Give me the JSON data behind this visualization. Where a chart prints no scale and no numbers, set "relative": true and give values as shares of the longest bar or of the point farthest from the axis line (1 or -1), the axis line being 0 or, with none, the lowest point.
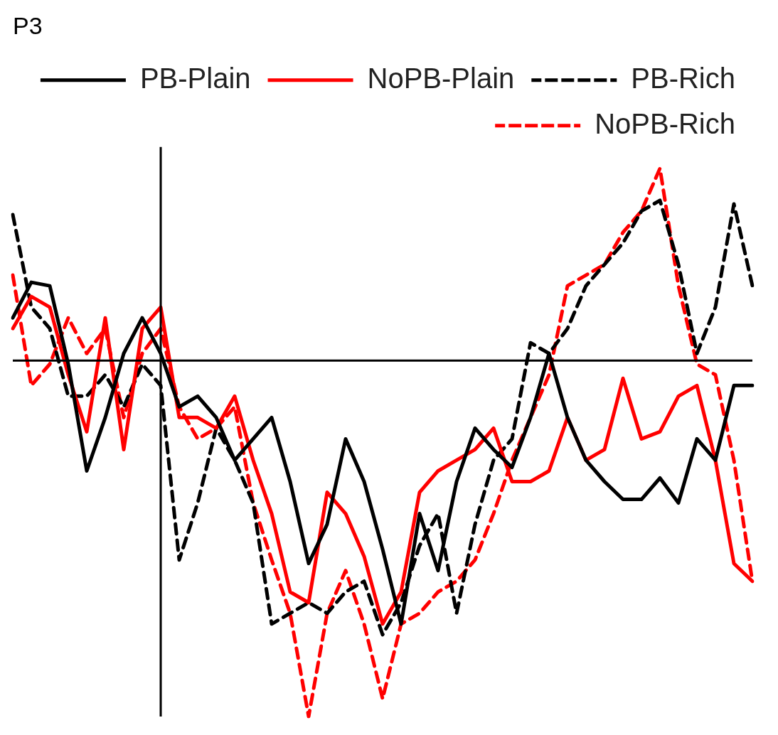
{
  "chart_data": {
    "type": "line",
    "title": "P3",
    "relative": true,
    "legend": "top",
    "marker": "none",
    "categories": [
      null,
      null,
      null,
      null,
      null,
      null,
      null,
      null,
      null,
      null,
      null,
      null,
      null,
      null,
      null,
      null,
      null,
      null,
      null,
      null,
      null,
      null,
      null,
      null,
      null,
      null,
      null,
      null,
      null,
      null,
      null,
      null,
      null,
      null,
      null,
      null,
      null,
      null,
      null,
      null,
      null
    ],
    "series": [
      {
        "name": "PB-Plain",
        "color": "#000000",
        "line_style": "solid",
        "values": [
          0.12,
          0.22,
          0.21,
          -0.01,
          -0.31,
          -0.16,
          0.02,
          0.12,
          0.02,
          -0.13,
          -0.1,
          -0.16,
          -0.28,
          -0.22,
          -0.16,
          -0.34,
          -0.57,
          -0.46,
          -0.22,
          -0.34,
          -0.53,
          -0.74,
          -0.43,
          -0.59,
          -0.34,
          -0.19,
          -0.25,
          -0.3,
          -0.16,
          0.02,
          -0.16,
          -0.28,
          -0.34,
          -0.39,
          -0.39,
          -0.33,
          -0.4,
          -0.22,
          -0.28,
          -0.07,
          -0.07
        ]
      },
      {
        "name": "NoPB-Plain",
        "color": "#ff0000",
        "line_style": "solid",
        "values": [
          0.09,
          0.18,
          0.15,
          -0.04,
          -0.2,
          0.12,
          -0.25,
          0.09,
          0.15,
          -0.16,
          -0.16,
          -0.19,
          -0.1,
          -0.28,
          -0.43,
          -0.65,
          -0.68,
          -0.37,
          -0.43,
          -0.55,
          -0.74,
          -0.65,
          -0.37,
          -0.31,
          -0.28,
          -0.25,
          -0.19,
          -0.34,
          -0.34,
          -0.31,
          -0.16,
          -0.28,
          -0.25,
          -0.05,
          -0.22,
          -0.2,
          -0.1,
          -0.07,
          -0.28,
          -0.57,
          -0.62
        ]
      },
      {
        "name": "PB-Rich",
        "color": "#000000",
        "line_style": "dashed",
        "values": [
          0.41,
          0.15,
          0.09,
          -0.1,
          -0.1,
          -0.04,
          -0.13,
          -0.01,
          -0.07,
          -0.56,
          -0.4,
          -0.19,
          -0.28,
          -0.4,
          -0.74,
          -0.71,
          -0.68,
          -0.71,
          -0.65,
          -0.62,
          -0.77,
          -0.68,
          -0.52,
          -0.43,
          -0.71,
          -0.46,
          -0.28,
          -0.22,
          0.05,
          0.02,
          0.09,
          0.21,
          0.27,
          0.33,
          0.42,
          0.45,
          0.27,
          0.02,
          0.15,
          0.44,
          0.21
        ]
      },
      {
        "name": "NoPB-Rich",
        "color": "#ff0000",
        "line_style": "dashed",
        "values": [
          0.24,
          -0.07,
          -0.01,
          0.12,
          0.02,
          0.09,
          -0.16,
          0.02,
          0.09,
          -0.13,
          -0.22,
          -0.19,
          -0.13,
          -0.4,
          -0.56,
          -0.71,
          -1,
          -0.71,
          -0.59,
          -0.74,
          -0.95,
          -0.74,
          -0.71,
          -0.65,
          -0.62,
          -0.56,
          -0.43,
          -0.28,
          -0.16,
          -0.04,
          0.21,
          0.24,
          0.27,
          0.36,
          0.42,
          0.54,
          0.21,
          -0.01,
          -0.04,
          -0.28,
          -0.62
        ]
      }
    ]
  }
}
